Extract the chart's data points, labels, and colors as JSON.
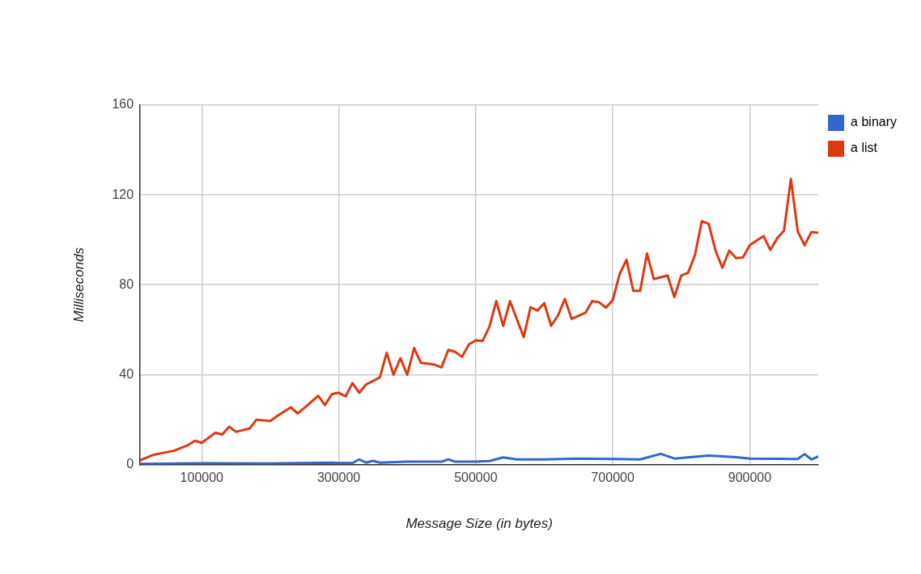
{
  "chart_data": {
    "type": "line",
    "xlabel": "Message Size (in bytes)",
    "ylabel": "Milliseconds",
    "xlim": [
      10000,
      1000000
    ],
    "xticks": [
      100000,
      300000,
      500000,
      700000,
      900000
    ],
    "ylim": [
      0,
      160
    ],
    "yticks": [
      0,
      40,
      80,
      120,
      160
    ],
    "grid": true,
    "legend": "top right",
    "marker": "none",
    "line_style": "solid",
    "series": [
      {
        "name": "a binary",
        "color": "#3366cc",
        "x": [
          10000,
          100000,
          200000,
          290000,
          300000,
          320000,
          330000,
          340000,
          350000,
          360000,
          400000,
          450000,
          460000,
          470000,
          500000,
          520000,
          540000,
          560000,
          600000,
          650000,
          700000,
          740000,
          770000,
          790000,
          840000,
          880000,
          900000,
          970000,
          980000,
          990000,
          1000000
        ],
        "values": [
          0.2,
          0.5,
          0.4,
          0.8,
          0.6,
          0.6,
          2.2,
          0.8,
          1.6,
          0.8,
          1.2,
          1.2,
          2.2,
          1.2,
          1.2,
          1.5,
          3.1,
          2.2,
          2.2,
          2.6,
          2.4,
          2.2,
          4.7,
          2.6,
          3.9,
          3.2,
          2.6,
          2.4,
          4.6,
          2.2,
          3.5
        ]
      },
      {
        "name": "a list",
        "color": "#dc3912",
        "x": [
          10000,
          30000,
          50000,
          60000,
          80000,
          90000,
          100000,
          120000,
          130000,
          140000,
          150000,
          170000,
          180000,
          200000,
          210000,
          230000,
          240000,
          250000,
          270000,
          280000,
          290000,
          300000,
          310000,
          320000,
          330000,
          340000,
          360000,
          370000,
          380000,
          390000,
          400000,
          410000,
          420000,
          440000,
          450000,
          460000,
          470000,
          480000,
          490000,
          500000,
          510000,
          520000,
          530000,
          540000,
          550000,
          570000,
          580000,
          590000,
          600000,
          610000,
          620000,
          630000,
          640000,
          660000,
          670000,
          680000,
          690000,
          700000,
          710000,
          720000,
          730000,
          740000,
          750000,
          760000,
          780000,
          790000,
          800000,
          810000,
          820000,
          830000,
          840000,
          850000,
          860000,
          870000,
          880000,
          890000,
          900000,
          920000,
          930000,
          940000,
          950000,
          960000,
          970000,
          980000,
          990000,
          1000000
        ],
        "values": [
          1.8,
          4.3,
          5.5,
          6.1,
          8.6,
          10.5,
          9.6,
          14.1,
          13.3,
          16.8,
          14.5,
          16,
          19.9,
          19.3,
          21.5,
          25.4,
          22.7,
          25.2,
          30.5,
          26.4,
          31.3,
          31.9,
          30.3,
          36.2,
          31.9,
          35.6,
          38.7,
          49.7,
          39.9,
          47.3,
          39.9,
          51.8,
          45.2,
          44.4,
          43.2,
          51,
          50.1,
          47.9,
          53.4,
          55.2,
          55,
          61.4,
          72.7,
          61.7,
          72.7,
          56.7,
          70,
          68.5,
          71.8,
          61.7,
          66.3,
          73.7,
          64.8,
          67.5,
          72.7,
          72.2,
          69.8,
          73.1,
          84.7,
          91.1,
          77.3,
          77.3,
          93.9,
          82.5,
          84.1,
          74.5,
          84.1,
          85.3,
          93.3,
          108.3,
          107.1,
          95.2,
          87.6,
          95.2,
          91.9,
          92.1,
          97.6,
          101.7,
          95.5,
          100.7,
          104.1,
          127.1,
          103.8,
          97.6,
          103.5,
          103.1
        ]
      }
    ]
  }
}
